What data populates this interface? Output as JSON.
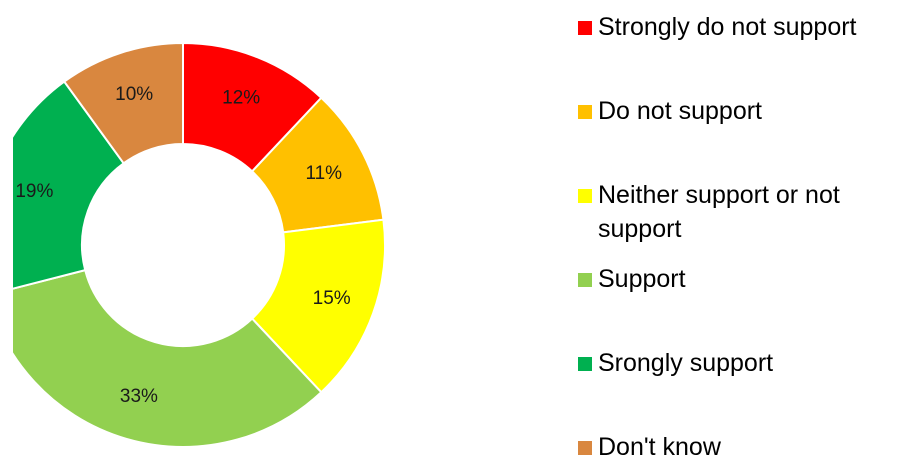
{
  "chart_data": {
    "type": "pie",
    "variant": "donut",
    "title": "",
    "legend": {
      "position": "right"
    },
    "slices": [
      {
        "name": "Strongly do not support",
        "value": 12,
        "label": "12%",
        "color": "#ff0000"
      },
      {
        "name": "Do not support",
        "value": 11,
        "label": "11%",
        "color": "#ffc000"
      },
      {
        "name": "Neither support or not support",
        "value": 15,
        "label": "15%",
        "color": "#ffff00"
      },
      {
        "name": "Support",
        "value": 33,
        "label": "33%",
        "color": "#92d050"
      },
      {
        "name": "Srongly support",
        "value": 19,
        "label": "19%",
        "color": "#00b050"
      },
      {
        "name": "Don't know",
        "value": 10,
        "label": "10%",
        "color": "#d9873f"
      }
    ]
  }
}
